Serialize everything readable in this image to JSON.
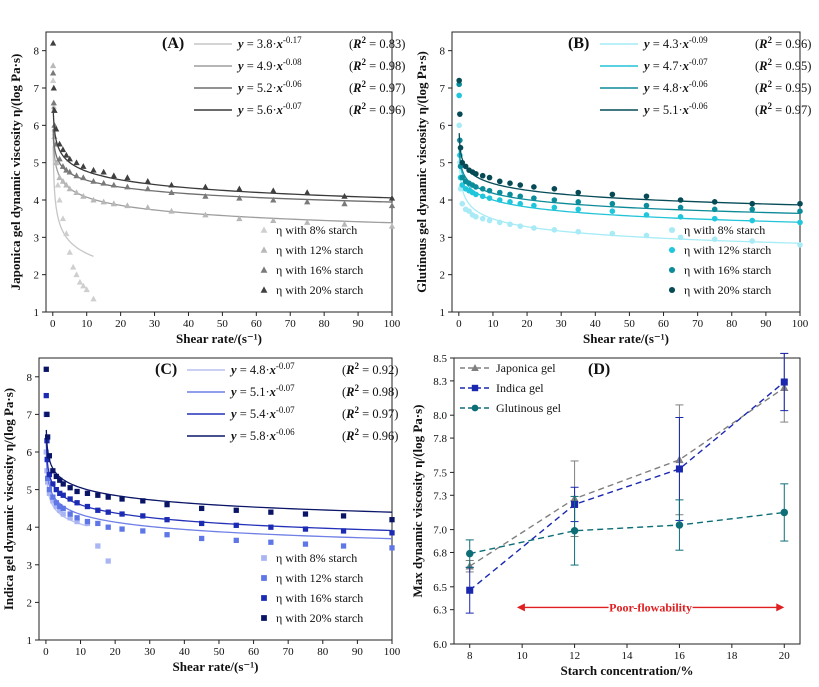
{
  "chart_data": [
    {
      "type": "scatter",
      "panel": "(A)",
      "xlabel": "Shear rate/(s⁻¹)",
      "ylabel": "Japonica gel dynamic viscosity η/(log Pa·s)",
      "xlim": [
        -2,
        100
      ],
      "ylim": [
        1,
        8.5
      ],
      "xticks": [
        0,
        10,
        20,
        30,
        40,
        50,
        60,
        70,
        80,
        90,
        100
      ],
      "yticks": [
        1,
        2,
        3,
        4,
        5,
        6,
        7,
        8
      ],
      "marker": "triangle",
      "legend_position": "bottom-right",
      "equations": [
        {
          "y_label": "y",
          "text": "= 3.8·",
          "x_label": "x",
          "exponent": "-0.17",
          "r2_label": "R",
          "r2_value": "= 0.83)",
          "color": "#c6c6c6"
        },
        {
          "y_label": "y",
          "text": "= 4.9·",
          "x_label": "x",
          "exponent": "-0.08",
          "r2_label": "R",
          "r2_value": "= 0.98)",
          "color": "#9e9e9e"
        },
        {
          "y_label": "y",
          "text": "= 5.2·",
          "x_label": "x",
          "exponent": "-0.06",
          "r2_label": "R",
          "r2_value": "= 0.97)",
          "color": "#6e6e6e"
        },
        {
          "y_label": "y",
          "text": "= 5.6·",
          "x_label": "x",
          "exponent": "-0.07",
          "r2_label": "R",
          "r2_value": "= 0.96)",
          "color": "#3a3a3a"
        }
      ],
      "series": [
        {
          "name": "η with 8% starch",
          "color": "#cfcfcf",
          "fit": {
            "a": 3.8,
            "b": -0.17,
            "xmax": 12
          },
          "x": [
            0.1,
            0.3,
            0.5,
            1,
            1.5,
            2,
            3,
            4,
            5,
            6,
            7,
            8,
            9,
            10,
            12
          ],
          "y": [
            7.2,
            6.5,
            5.9,
            5.0,
            4.4,
            4.0,
            3.5,
            3.1,
            2.6,
            2.2,
            2.0,
            1.8,
            1.7,
            1.6,
            1.35
          ]
        },
        {
          "name": "η with 12% starch",
          "color": "#b8b8b8",
          "fit": {
            "a": 4.9,
            "b": -0.08,
            "xmax": 100
          },
          "x": [
            0.1,
            0.3,
            0.5,
            1,
            2,
            3,
            4,
            5,
            7,
            9,
            12,
            15,
            18,
            22,
            28,
            35,
            45,
            55,
            65,
            75,
            86,
            100
          ],
          "y": [
            7.6,
            6.4,
            5.7,
            5.0,
            4.6,
            4.5,
            4.4,
            4.3,
            4.2,
            4.1,
            4.0,
            3.95,
            3.9,
            3.85,
            3.8,
            3.7,
            3.6,
            3.5,
            3.45,
            3.4,
            3.35,
            3.3
          ]
        },
        {
          "name": "η with 16% starch",
          "color": "#7a7a7a",
          "fit": {
            "a": 5.2,
            "b": -0.06,
            "xmax": 100
          },
          "x": [
            0.1,
            0.3,
            0.5,
            1,
            2,
            3,
            4,
            5,
            7,
            9,
            12,
            15,
            18,
            22,
            28,
            35,
            45,
            55,
            65,
            75,
            86,
            100
          ],
          "y": [
            7.4,
            6.6,
            6.0,
            5.5,
            5.1,
            4.9,
            4.8,
            4.75,
            4.65,
            4.6,
            4.5,
            4.45,
            4.4,
            4.35,
            4.3,
            4.2,
            4.1,
            4.05,
            4.0,
            3.95,
            3.9,
            3.85
          ]
        },
        {
          "name": "η with 20% starch",
          "color": "#404040",
          "fit": {
            "a": 5.6,
            "b": -0.07,
            "xmax": 100
          },
          "x": [
            0.1,
            0.3,
            0.5,
            1,
            2,
            3,
            4,
            5,
            7,
            9,
            12,
            15,
            18,
            22,
            28,
            35,
            45,
            55,
            65,
            75,
            86,
            100
          ],
          "y": [
            8.2,
            7.0,
            6.4,
            5.9,
            5.5,
            5.35,
            5.2,
            5.1,
            5.0,
            4.9,
            4.8,
            4.75,
            4.65,
            4.6,
            4.5,
            4.4,
            4.35,
            4.3,
            4.25,
            4.2,
            4.1,
            4.05
          ]
        }
      ]
    },
    {
      "type": "scatter",
      "panel": "(B)",
      "xlabel": "Shear rate/(s⁻¹)",
      "ylabel": "Glutinous gel dynamic viscosity η/(log Pa·s)",
      "xlim": [
        -2,
        100
      ],
      "ylim": [
        1,
        8.5
      ],
      "xticks": [
        0,
        10,
        20,
        30,
        40,
        50,
        60,
        70,
        80,
        90,
        100
      ],
      "yticks": [
        1,
        2,
        3,
        4,
        5,
        6,
        7,
        8
      ],
      "marker": "circle",
      "legend_position": "bottom-right",
      "equations": [
        {
          "y_label": "y",
          "text": "= 4.3·",
          "x_label": "x",
          "exponent": "-0.09",
          "r2_label": "R",
          "r2_value": "= 0.96)",
          "color": "#a6ecf6"
        },
        {
          "y_label": "y",
          "text": "= 4.7·",
          "x_label": "x",
          "exponent": "-0.07",
          "r2_label": "R",
          "r2_value": "= 0.95)",
          "color": "#22c4d8"
        },
        {
          "y_label": "y",
          "text": "= 4.8·",
          "x_label": "x",
          "exponent": "-0.06",
          "r2_label": "R",
          "r2_value": "= 0.95)",
          "color": "#0b8a98"
        },
        {
          "y_label": "y",
          "text": "= 5.1·",
          "x_label": "x",
          "exponent": "-0.06",
          "r2_label": "R",
          "r2_value": "= 0.97)",
          "color": "#064b57"
        }
      ],
      "series": [
        {
          "name": "η with 8% starch",
          "color": "#a8eaf6",
          "fit": {
            "a": 4.3,
            "b": -0.09,
            "xmax": 100
          },
          "x": [
            0.1,
            0.3,
            0.5,
            1,
            2,
            3,
            4,
            5,
            7,
            9,
            12,
            15,
            18,
            22,
            28,
            35,
            45,
            55,
            65,
            75,
            86,
            100
          ],
          "y": [
            6.0,
            5.0,
            4.3,
            3.9,
            3.75,
            3.7,
            3.6,
            3.55,
            3.5,
            3.45,
            3.4,
            3.35,
            3.3,
            3.25,
            3.2,
            3.15,
            3.1,
            3.05,
            3.0,
            2.95,
            2.9,
            2.8
          ]
        },
        {
          "name": "η with 12% starch",
          "color": "#1fc6dc",
          "fit": {
            "a": 4.7,
            "b": -0.07,
            "xmax": 100
          },
          "x": [
            0.1,
            0.3,
            0.5,
            1,
            2,
            3,
            4,
            5,
            7,
            9,
            12,
            15,
            18,
            22,
            28,
            35,
            45,
            55,
            65,
            75,
            86,
            100
          ],
          "y": [
            6.8,
            5.2,
            4.6,
            4.4,
            4.3,
            4.25,
            4.2,
            4.15,
            4.1,
            4.05,
            4.0,
            3.95,
            3.9,
            3.85,
            3.8,
            3.75,
            3.7,
            3.6,
            3.55,
            3.5,
            3.45,
            3.4
          ]
        },
        {
          "name": "η with 16% starch",
          "color": "#0b8c9a",
          "fit": {
            "a": 4.8,
            "b": -0.06,
            "xmax": 100
          },
          "x": [
            0.1,
            0.3,
            0.5,
            1,
            2,
            3,
            4,
            5,
            7,
            9,
            12,
            15,
            18,
            22,
            28,
            35,
            45,
            55,
            65,
            75,
            86,
            100
          ],
          "y": [
            7.1,
            5.6,
            4.9,
            4.6,
            4.5,
            4.45,
            4.4,
            4.35,
            4.3,
            4.25,
            4.2,
            4.15,
            4.1,
            4.05,
            4.0,
            3.95,
            3.9,
            3.85,
            3.8,
            3.75,
            3.75,
            3.7
          ]
        },
        {
          "name": "η with 20% starch",
          "color": "#064a55",
          "fit": {
            "a": 5.1,
            "b": -0.06,
            "xmax": 100
          },
          "x": [
            0.1,
            0.3,
            0.5,
            1,
            2,
            3,
            4,
            5,
            7,
            9,
            12,
            15,
            18,
            22,
            28,
            35,
            45,
            55,
            65,
            75,
            86,
            100
          ],
          "y": [
            7.2,
            6.3,
            5.4,
            5.0,
            4.9,
            4.8,
            4.75,
            4.7,
            4.65,
            4.6,
            4.5,
            4.45,
            4.4,
            4.35,
            4.3,
            4.2,
            4.15,
            4.1,
            4.0,
            3.95,
            3.9,
            3.9
          ]
        }
      ]
    },
    {
      "type": "scatter",
      "panel": "(C)",
      "xlabel": "Shear rate/(s⁻¹)",
      "ylabel": "Indica gel dynamic viscosity η/(log Pa·s)",
      "xlim": [
        -2,
        100
      ],
      "ylim": [
        1,
        8.5
      ],
      "xticks": [
        0,
        10,
        20,
        30,
        40,
        50,
        60,
        70,
        80,
        90,
        100
      ],
      "yticks": [
        1,
        2,
        3,
        4,
        5,
        6,
        7,
        8
      ],
      "marker": "square",
      "legend_position": "bottom-right",
      "equations": [
        {
          "y_label": "y",
          "text": "= 4.8·",
          "x_label": "x",
          "exponent": "-0.07",
          "r2_label": "R",
          "r2_value": "= 0.92)",
          "color": "#b9c0f2"
        },
        {
          "y_label": "y",
          "text": "= 5.1·",
          "x_label": "x",
          "exponent": "-0.07",
          "r2_label": "R",
          "r2_value": "= 0.98)",
          "color": "#6f7fe6"
        },
        {
          "y_label": "y",
          "text": "= 5.4·",
          "x_label": "x",
          "exponent": "-0.07",
          "r2_label": "R",
          "r2_value": "= 0.97)",
          "color": "#2330b8"
        },
        {
          "y_label": "y",
          "text": "= 5.8·",
          "x_label": "x",
          "exponent": "-0.06",
          "r2_label": "R",
          "r2_value": "= 0.96)",
          "color": "#0c1668"
        }
      ],
      "series": [
        {
          "name": "η with 8% starch",
          "color": "#aab6f4",
          "fit": {
            "a": 4.8,
            "b": -0.07,
            "xmax": 12
          },
          "x": [
            0.1,
            0.3,
            0.5,
            1,
            2,
            3,
            4,
            5,
            7,
            9,
            12,
            15,
            18
          ],
          "y": [
            6.0,
            5.5,
            5.2,
            4.9,
            4.7,
            4.55,
            4.45,
            4.35,
            4.25,
            4.15,
            4.1,
            3.5,
            3.1
          ]
        },
        {
          "name": "η with 12% starch",
          "color": "#5f76e6",
          "fit": {
            "a": 5.1,
            "b": -0.07,
            "xmax": 100
          },
          "x": [
            0.1,
            0.3,
            0.5,
            1,
            2,
            3,
            4,
            5,
            7,
            9,
            12,
            15,
            18,
            22,
            28,
            35,
            45,
            55,
            65,
            75,
            86,
            100
          ],
          "y": [
            7.0,
            5.8,
            5.3,
            5.0,
            4.8,
            4.65,
            4.55,
            4.5,
            4.35,
            4.25,
            4.15,
            4.1,
            4.0,
            3.95,
            3.9,
            3.8,
            3.7,
            3.65,
            3.6,
            3.55,
            3.5,
            3.45
          ]
        },
        {
          "name": "η with 16% starch",
          "color": "#1c2bb4",
          "fit": {
            "a": 5.4,
            "b": -0.07,
            "xmax": 100
          },
          "x": [
            0.1,
            0.3,
            0.5,
            1,
            2,
            3,
            4,
            5,
            7,
            9,
            12,
            15,
            18,
            22,
            28,
            35,
            45,
            55,
            65,
            75,
            86,
            100
          ],
          "y": [
            7.5,
            6.3,
            5.8,
            5.4,
            5.15,
            5.0,
            4.9,
            4.85,
            4.75,
            4.65,
            4.55,
            4.45,
            4.4,
            4.35,
            4.3,
            4.2,
            4.1,
            4.05,
            4.0,
            3.95,
            3.9,
            3.85
          ]
        },
        {
          "name": "η with 20% starch",
          "color": "#0a1466",
          "fit": {
            "a": 5.8,
            "b": -0.06,
            "xmax": 100
          },
          "x": [
            0.1,
            0.3,
            0.5,
            1,
            2,
            3,
            4,
            5,
            7,
            9,
            12,
            15,
            18,
            22,
            28,
            35,
            45,
            55,
            65,
            75,
            86,
            100
          ],
          "y": [
            8.2,
            7.0,
            6.4,
            5.9,
            5.5,
            5.35,
            5.25,
            5.15,
            5.05,
            4.95,
            4.9,
            4.85,
            4.8,
            4.75,
            4.7,
            4.6,
            4.5,
            4.45,
            4.4,
            4.35,
            4.3,
            4.2
          ]
        }
      ]
    },
    {
      "type": "line",
      "panel": "(D)",
      "xlabel": "Starch concentration/%",
      "ylabel": "Max dynamic viscosity η/(log Pa·s)",
      "xlim": [
        7.4,
        20.6
      ],
      "ylim": [
        6.0,
        8.5
      ],
      "xticks": [
        8,
        10,
        12,
        14,
        16,
        18,
        20
      ],
      "yticks": [
        6.0,
        6.3,
        6.5,
        6.8,
        7.0,
        7.3,
        7.5,
        7.8,
        8.0,
        8.3,
        8.5
      ],
      "ytick_labels": [
        "6.0",
        "6.3",
        "6.5",
        "6.8",
        "7.0",
        "7.3",
        "7.5",
        "7.8",
        "8.0",
        "8.3",
        "8.5"
      ],
      "x": [
        8,
        12,
        16,
        20
      ],
      "legend_position": "top-left",
      "annotation": {
        "text": "Poor-flowability",
        "x_start": 9.8,
        "x_end": 20,
        "y": 6.32,
        "color": "#e02020"
      },
      "series": [
        {
          "name": "Japonica gel",
          "color": "#808080",
          "marker": "triangle",
          "values": [
            6.68,
            7.27,
            7.61,
            8.24
          ],
          "err": [
            0.05,
            0.33,
            0.48,
            0.3
          ]
        },
        {
          "name": "Indica gel",
          "color": "#1a28b0",
          "marker": "square",
          "values": [
            6.47,
            7.22,
            7.53,
            8.29
          ],
          "err": [
            0.2,
            0.15,
            0.45,
            0.25
          ]
        },
        {
          "name": "Glutinous gel",
          "color": "#0d6e78",
          "marker": "circle",
          "values": [
            6.79,
            6.99,
            7.04,
            7.15
          ],
          "err": [
            0.12,
            0.3,
            0.22,
            0.25
          ]
        }
      ]
    }
  ]
}
